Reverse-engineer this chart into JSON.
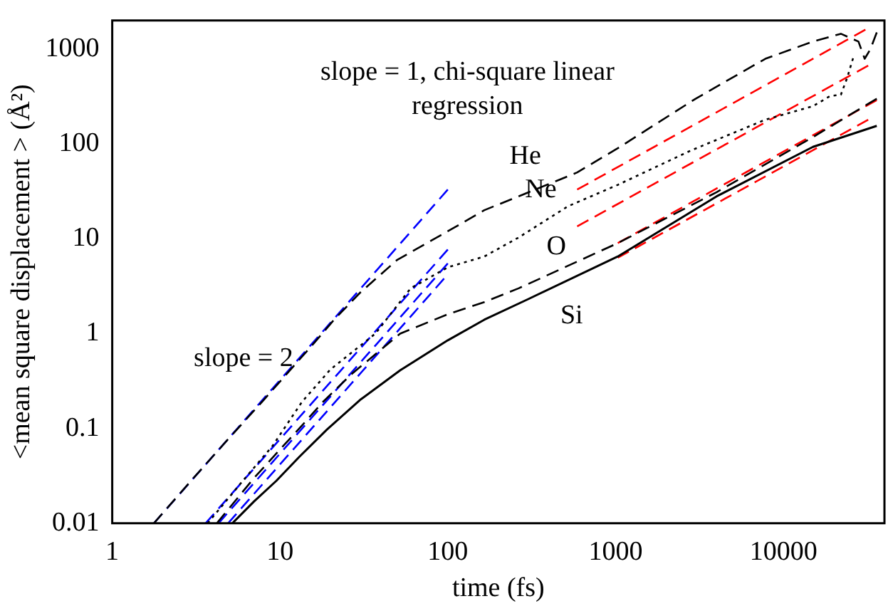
{
  "chart_data": {
    "type": "line",
    "xlabel": "time (fs)",
    "ylabel": "<mean square displacement > (Å²)",
    "log": "xy",
    "grid": false,
    "legend": false,
    "xlim": [
      1,
      40000
    ],
    "ylim": [
      0.01,
      2000
    ],
    "xticks": [
      1,
      10,
      100,
      1000,
      10000
    ],
    "yticks": [
      0.01,
      0.1,
      1,
      10,
      100,
      1000
    ],
    "series": [
      {
        "name": "He",
        "color": "#000000",
        "line_style": "dashed",
        "x": [
          1.77,
          3,
          5,
          8,
          12,
          16,
          21,
          30,
          50,
          100,
          165,
          264,
          590,
          1030,
          3000,
          7800,
          15000,
          22000,
          28000,
          30500,
          33000,
          36000
        ],
        "values": [
          0.01,
          0.029,
          0.08,
          0.2,
          0.45,
          0.8,
          1.4,
          2.7,
          6,
          12,
          20,
          28,
          50,
          90,
          300,
          790,
          1200,
          1450,
          1200,
          790,
          1000,
          1500
        ]
      },
      {
        "name": "Ne",
        "color": "#000000",
        "line_style": "dotted",
        "x": [
          3.7,
          6,
          9,
          13.5,
          20,
          37,
          60,
          100,
          165,
          264,
          520,
          1030,
          2800,
          7800,
          15000,
          19000,
          22000,
          24000,
          26000
        ],
        "values": [
          0.01,
          0.028,
          0.065,
          0.19,
          0.42,
          1,
          3,
          5,
          6.5,
          10.3,
          22,
          37,
          85,
          180,
          250,
          320,
          330,
          500,
          800
        ]
      },
      {
        "name": "O",
        "color": "#000000",
        "line_style": "dashed",
        "x": [
          4.2,
          7,
          10,
          13.5,
          18,
          26.5,
          52,
          100,
          165,
          264,
          1030,
          4000,
          15000,
          36000
        ],
        "values": [
          0.01,
          0.03,
          0.06,
          0.107,
          0.19,
          0.37,
          1,
          1.6,
          2.15,
          3,
          9,
          31,
          118,
          300
        ]
      },
      {
        "name": "Si",
        "color": "#000000",
        "line_style": "solid",
        "x": [
          5.2,
          7,
          9.5,
          13,
          19,
          30,
          52,
          100,
          165,
          300,
          1030,
          4000,
          15000,
          36000
        ],
        "values": [
          0.01,
          0.017,
          0.028,
          0.05,
          0.097,
          0.2,
          0.41,
          0.85,
          1.4,
          2.3,
          6.5,
          28,
          93,
          155
        ]
      },
      {
        "color": "#0000ff",
        "line_style": "dashed",
        "x": [
          1.77,
          100
        ],
        "values": [
          0.01,
          33
        ]
      },
      {
        "color": "#0000ff",
        "line_style": "dashed",
        "x": [
          3.6,
          100
        ],
        "values": [
          0.01,
          7.7
        ]
      },
      {
        "color": "#0000ff",
        "line_style": "dashed",
        "x": [
          4.3,
          100
        ],
        "values": [
          0.01,
          5.5
        ]
      },
      {
        "color": "#0000ff",
        "line_style": "dashed",
        "x": [
          4.9,
          95
        ],
        "values": [
          0.01,
          3.8
        ]
      },
      {
        "color": "#ff0000",
        "line_style": "dashed",
        "x": [
          590,
          30800
        ],
        "values": [
          33,
          1600
        ]
      },
      {
        "color": "#ff0000",
        "line_style": "dashed",
        "x": [
          590,
          32000
        ],
        "values": [
          13.5,
          670
        ]
      },
      {
        "color": "#ff0000",
        "line_style": "dashed",
        "x": [
          1030,
          36000
        ],
        "values": [
          9,
          290
        ]
      },
      {
        "color": "#ff0000",
        "line_style": "dashed",
        "x": [
          1030,
          32000
        ],
        "values": [
          6.3,
          180
        ]
      }
    ],
    "annotations": [
      "slope = 1, chi-square linear regression",
      "slope = 2"
    ]
  }
}
